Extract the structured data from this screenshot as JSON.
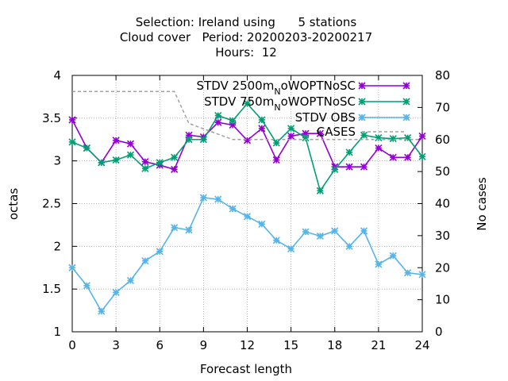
{
  "chart_data": {
    "type": "line",
    "title_lines": [
      "Selection: Ireland using      5 stations",
      "Cloud cover   Period: 20200203-20200217",
      "Hours:  12"
    ],
    "xlabel": "Forecast length",
    "ylabel": "octas",
    "y2label": "No cases",
    "xlim": [
      0,
      24
    ],
    "ylim": [
      1,
      4
    ],
    "y2lim": [
      0,
      80
    ],
    "xticks": [
      "0",
      "3",
      "6",
      "9",
      "12",
      "15",
      "18",
      "21",
      "24"
    ],
    "xtick_values": [
      0,
      3,
      6,
      9,
      12,
      15,
      18,
      21,
      24
    ],
    "yticks": [
      "1",
      "1.5",
      "2",
      "2.5",
      "3",
      "3.5",
      "4"
    ],
    "ytick_values": [
      1,
      1.5,
      2,
      2.5,
      3,
      3.5,
      4
    ],
    "y2ticks": [
      "0",
      "10",
      "20",
      "30",
      "40",
      "50",
      "60",
      "70",
      "80"
    ],
    "y2tick_values": [
      0,
      10,
      20,
      30,
      40,
      50,
      60,
      70,
      80
    ],
    "grid": true,
    "legend_position": "top-right",
    "x": [
      0,
      1,
      2,
      3,
      4,
      5,
      6,
      7,
      8,
      9,
      10,
      11,
      12,
      13,
      14,
      15,
      16,
      17,
      18,
      19,
      20,
      21,
      22,
      23,
      24
    ],
    "series": [
      {
        "name": "STDV 2500m_NoWOPTNoSC",
        "legend_parts": [
          "STDV 2500m",
          "N",
          "oWOPTNoSC"
        ],
        "color": "#9400d3",
        "axis": "y1",
        "values": [
          3.48,
          3.15,
          2.98,
          3.24,
          3.2,
          2.99,
          2.95,
          2.9,
          3.3,
          3.28,
          3.45,
          3.42,
          3.24,
          3.38,
          3.01,
          3.29,
          3.32,
          3.32,
          2.93,
          2.93,
          2.93,
          3.15,
          3.04,
          3.04,
          3.29
        ]
      },
      {
        "name": "STDV 750m_NoWOPTNoSC",
        "legend_parts": [
          "STDV 750m",
          "N",
          "oWOPTNoSC"
        ],
        "color": "#009e73",
        "axis": "y1",
        "values": [
          3.22,
          3.15,
          2.98,
          3.01,
          3.07,
          2.91,
          2.98,
          3.04,
          3.25,
          3.25,
          3.53,
          3.47,
          3.67,
          3.48,
          3.21,
          3.38,
          3.27,
          2.65,
          2.9,
          3.1,
          3.3,
          3.27,
          3.26,
          3.27,
          3.05
        ]
      },
      {
        "name": "STDV OBS",
        "legend_parts": [
          "STDV OBS"
        ],
        "color": "#56b4e9",
        "axis": "y1",
        "values": [
          1.75,
          1.54,
          1.24,
          1.46,
          1.6,
          1.83,
          1.94,
          2.22,
          2.19,
          2.57,
          2.55,
          2.44,
          2.35,
          2.26,
          2.07,
          1.97,
          2.17,
          2.12,
          2.18,
          2.0,
          2.18,
          1.79,
          1.89,
          1.69,
          1.67
        ]
      },
      {
        "name": "CASES",
        "legend_parts": [
          "CASES"
        ],
        "color": "#a0a0a0",
        "axis": "y2",
        "dashed": true,
        "x": [
          0,
          7,
          8,
          11,
          12,
          13,
          14,
          15,
          16,
          17,
          18,
          19,
          20,
          21,
          22,
          23,
          24
        ],
        "values": [
          75,
          75,
          65,
          60,
          60,
          60,
          60,
          60,
          60,
          60,
          60,
          60,
          60,
          60,
          60,
          60,
          60
        ]
      }
    ]
  }
}
